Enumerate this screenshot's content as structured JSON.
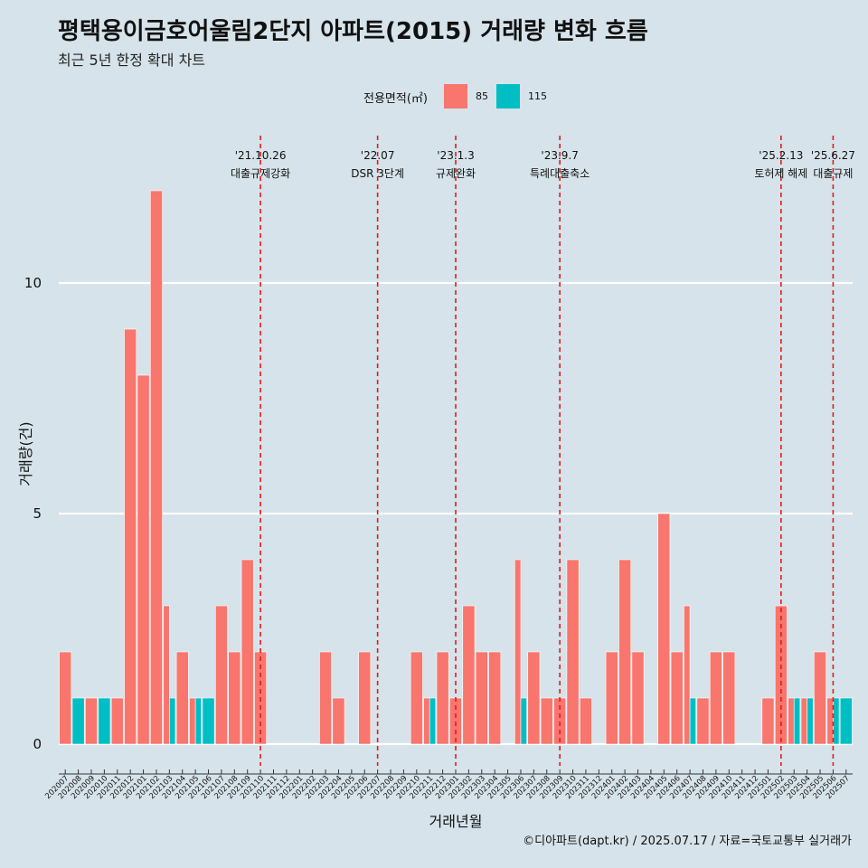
{
  "title": "평택용이금호어울림2단지 아파트(2015) 거래량 변화 흐름",
  "subtitle": "최근 5년 한정 확대 차트",
  "legend": {
    "title": "전용면적(㎡)"
  },
  "caption": "©디아파트(dapt.kr) / 2025.07.17 / 자료=국토교통부 실거래가",
  "colors": {
    "background": "#d6e3ea",
    "s85": "#f8766d",
    "s115": "#00bfc4",
    "grid": "#ffffff",
    "event_line": "#e41a1c"
  },
  "chart_data": {
    "type": "bar",
    "xlabel": "거래년월",
    "ylabel": "거래량(건)",
    "ylim": [
      -0.5,
      13
    ],
    "yticks": [
      0,
      5,
      10
    ],
    "grid": true,
    "legend_position": "top",
    "categories": [
      "202007",
      "202008",
      "202009",
      "202010",
      "202011",
      "202012",
      "202101",
      "202102",
      "202103",
      "202104",
      "202105",
      "202106",
      "202107",
      "202108",
      "202109",
      "202110",
      "202111",
      "202112",
      "202201",
      "202202",
      "202203",
      "202204",
      "202205",
      "202206",
      "202207",
      "202208",
      "202209",
      "202210",
      "202211",
      "202212",
      "202301",
      "202302",
      "202303",
      "202304",
      "202305",
      "202306",
      "202307",
      "202308",
      "202309",
      "202310",
      "202311",
      "202312",
      "202401",
      "202402",
      "202403",
      "202404",
      "202405",
      "202406",
      "202407",
      "202408",
      "202409",
      "202410",
      "202411",
      "202412",
      "202501",
      "202502",
      "202503",
      "202504",
      "202505",
      "202506",
      "202507"
    ],
    "series": [
      {
        "name": "85",
        "values": [
          2,
          0,
          1,
          0,
          1,
          9,
          8,
          12,
          3,
          2,
          1,
          0,
          3,
          2,
          4,
          2,
          0,
          0,
          0,
          0,
          2,
          1,
          0,
          2,
          0,
          0,
          0,
          2,
          1,
          2,
          1,
          3,
          2,
          2,
          0,
          4,
          2,
          1,
          1,
          4,
          1,
          0,
          2,
          4,
          2,
          0,
          5,
          2,
          3,
          1,
          2,
          2,
          0,
          0,
          1,
          3,
          1,
          1,
          2,
          1,
          0
        ]
      },
      {
        "name": "115",
        "values": [
          0,
          1,
          0,
          1,
          0,
          0,
          0,
          0,
          1,
          0,
          1,
          1,
          0,
          0,
          0,
          0,
          0,
          0,
          0,
          0,
          0,
          0,
          0,
          0,
          0,
          0,
          0,
          0,
          1,
          0,
          0,
          0,
          0,
          0,
          0,
          1,
          0,
          0,
          0,
          0,
          0,
          0,
          0,
          0,
          0,
          0,
          0,
          0,
          1,
          0,
          0,
          0,
          0,
          0,
          0,
          0,
          1,
          1,
          0,
          1,
          1
        ]
      }
    ],
    "events": [
      {
        "month": "202110",
        "offset": 0.0,
        "date": "'21.10.26",
        "label": "대출규제강화"
      },
      {
        "month": "202207",
        "offset": 0.0,
        "date": "'22.07",
        "label": "DSR 3단계"
      },
      {
        "month": "202301",
        "offset": 0.0,
        "date": "'23.1.3",
        "label": "규제완화"
      },
      {
        "month": "202309",
        "offset": 0.0,
        "date": "'23.9.7",
        "label": "특례대출축소"
      },
      {
        "month": "202502",
        "offset": 0.0,
        "date": "'25.2.13",
        "label": "토허제 해제"
      },
      {
        "month": "202506",
        "offset": 0.0,
        "date": "'25.6.27",
        "label": "대출규제"
      }
    ]
  }
}
